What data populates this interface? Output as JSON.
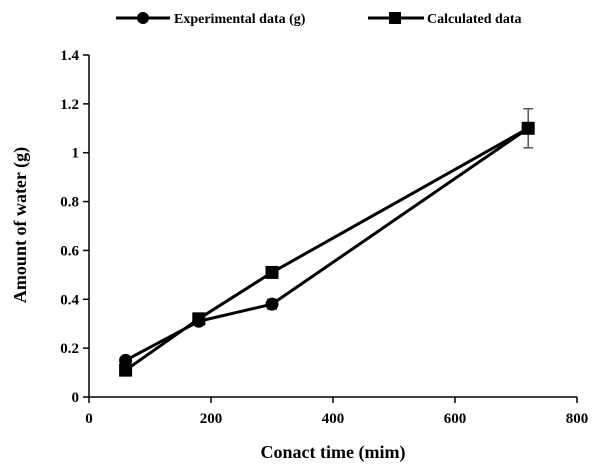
{
  "chart_data": {
    "type": "line",
    "title": "",
    "xlabel": "Conact time (mim)",
    "ylabel": "Amount of water (g)",
    "xlim": [
      0,
      800
    ],
    "ylim": [
      0,
      1.4
    ],
    "x_ticks": [
      "0",
      "200",
      "400",
      "600",
      "800"
    ],
    "y_ticks": [
      "0",
      "0.2",
      "0.4",
      "0.6",
      "0.8",
      "1",
      "1.2",
      "1.4"
    ],
    "grid": false,
    "legend_position": "top",
    "series": [
      {
        "name": "Experimental data (g)",
        "marker": "circle",
        "color": "#000000",
        "x": [
          60,
          180,
          300,
          720
        ],
        "y": [
          0.15,
          0.31,
          0.38,
          1.1
        ],
        "error": [
          0.01,
          0.01,
          0.02,
          0.08
        ]
      },
      {
        "name": "Calculated data",
        "marker": "square",
        "color": "#000000",
        "x": [
          60,
          180,
          300,
          720
        ],
        "y": [
          0.11,
          0.32,
          0.51,
          1.1
        ]
      }
    ]
  }
}
